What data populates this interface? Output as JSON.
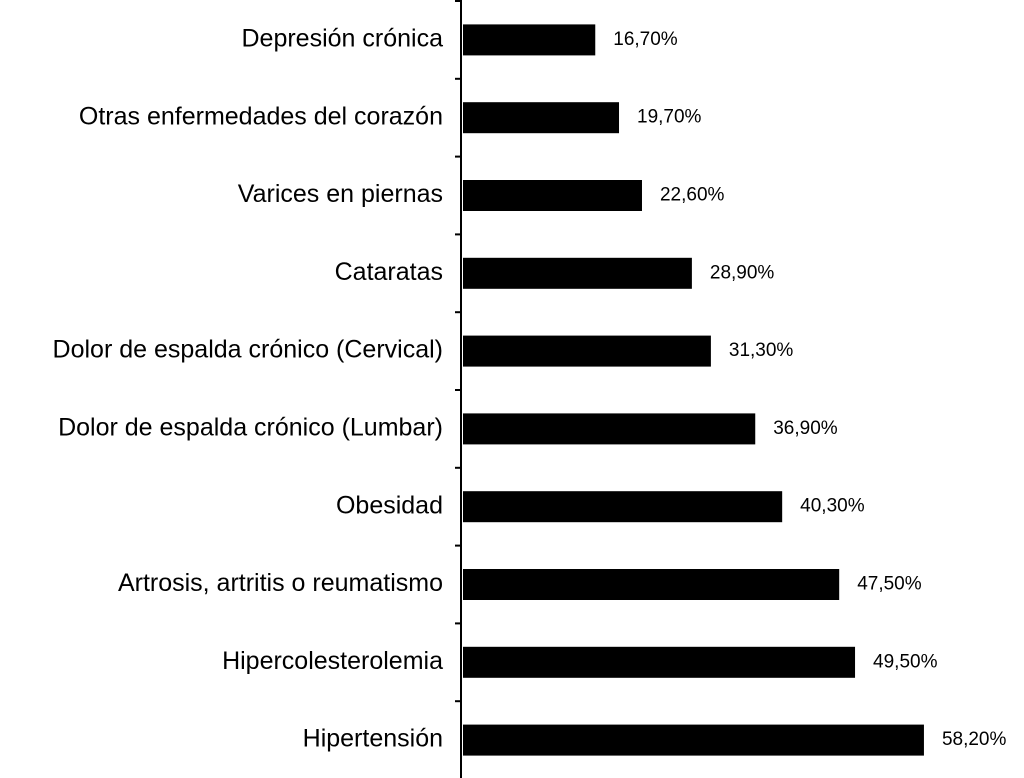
{
  "chart_data": {
    "type": "barh",
    "categories": [
      "Depresión crónica",
      "Otras enfermedades del corazón",
      "Varices en piernas",
      "Cataratas",
      "Dolor de espalda crónico (Cervical)",
      "Dolor de espalda crónico (Lumbar)",
      "Obesidad",
      "Artrosis, artritis o reumatismo",
      "Hipercolesterolemia",
      "Hipertensión"
    ],
    "values": [
      16.7,
      19.7,
      22.6,
      28.9,
      31.3,
      36.9,
      40.3,
      47.5,
      49.5,
      58.2
    ],
    "value_labels": [
      "16,70%",
      "19,70%",
      "22,60%",
      "28,90%",
      "31,30%",
      "36,90%",
      "40,30%",
      "47,50%",
      "49,50%",
      "58,20%"
    ],
    "color": "#000000"
  }
}
